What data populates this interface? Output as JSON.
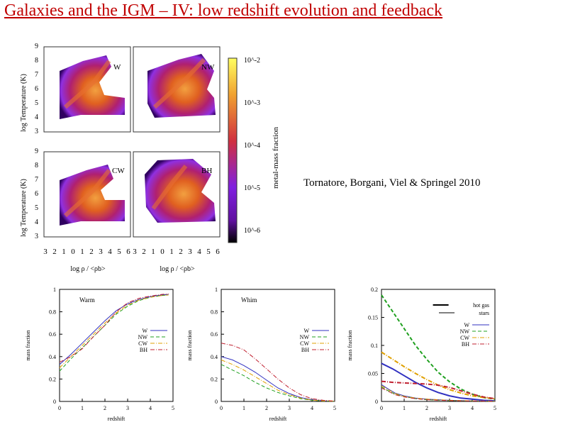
{
  "slide": {
    "title": "Galaxies and the IGM – IV: low redshift evolution and feedback",
    "credit": "Tornatore, Borgani, Viel & Springel 2010"
  },
  "phase_diagram": {
    "ylabel": "log Temperature (K)",
    "xlabel": "log ρ / <ρb>",
    "yticks": [
      "3",
      "4",
      "5",
      "6",
      "7",
      "8",
      "9"
    ],
    "xticks": [
      "3",
      "2",
      "1",
      "0",
      "1",
      "2",
      "3",
      "4",
      "5",
      "6"
    ],
    "panels": [
      "W",
      "NW",
      "CW",
      "BH"
    ],
    "colorbar_label": "metal-mass fraction",
    "colorbar_ticks": [
      "10^-2",
      "10^-3",
      "10^-4",
      "10^-5",
      "10^-6"
    ],
    "colors": {
      "hot": "#ffff40",
      "warm": "#e06020",
      "mid": "#b02060",
      "cool": "#a040ff",
      "dark": "#200040"
    }
  },
  "chart_data": [
    {
      "type": "line",
      "title": "Warm",
      "xlabel": "redshift",
      "ylabel": "mass fraction",
      "xlim": [
        0,
        5
      ],
      "ylim": [
        0,
        1
      ],
      "xticks": [
        0,
        1,
        2,
        3,
        4,
        5
      ],
      "yticks": [
        0,
        0.2,
        0.4,
        0.6,
        0.8,
        1
      ],
      "ytick_labels": [
        "0",
        "0.2",
        "0.4",
        "0.6",
        "0.8",
        "1"
      ],
      "series": [
        {
          "name": "W",
          "color": "#3030c0",
          "dash": "",
          "x": [
            0,
            0.5,
            1,
            1.5,
            2,
            2.5,
            3,
            3.5,
            4,
            4.5,
            4.8
          ],
          "y": [
            0.33,
            0.42,
            0.52,
            0.62,
            0.72,
            0.81,
            0.87,
            0.91,
            0.935,
            0.95,
            0.955
          ]
        },
        {
          "name": "NW",
          "color": "#20a020",
          "dash": "5,3",
          "x": [
            0,
            0.5,
            1,
            1.5,
            2,
            2.5,
            3,
            3.5,
            4,
            4.5,
            4.8
          ],
          "y": [
            0.27,
            0.38,
            0.48,
            0.58,
            0.68,
            0.78,
            0.85,
            0.9,
            0.93,
            0.945,
            0.95
          ]
        },
        {
          "name": "CW",
          "color": "#e0a000",
          "dash": "6,2,1,2",
          "x": [
            0,
            0.5,
            1,
            1.5,
            2,
            2.5,
            3,
            3.5,
            4,
            4.5,
            4.8
          ],
          "y": [
            0.3,
            0.4,
            0.5,
            0.6,
            0.7,
            0.79,
            0.86,
            0.905,
            0.93,
            0.945,
            0.95
          ]
        },
        {
          "name": "BH",
          "color": "#c02030",
          "dash": "6,2,1,2",
          "x": [
            0,
            0.5,
            1,
            1.5,
            2,
            2.5,
            3,
            3.5,
            4,
            4.5,
            4.8
          ],
          "y": [
            0.35,
            0.4,
            0.47,
            0.58,
            0.68,
            0.8,
            0.88,
            0.92,
            0.94,
            0.955,
            0.96
          ]
        }
      ]
    },
    {
      "type": "line",
      "title": "Whim",
      "xlabel": "redshift",
      "ylabel": "mass fraction",
      "xlim": [
        0,
        5
      ],
      "ylim": [
        0,
        1
      ],
      "xticks": [
        0,
        1,
        2,
        3,
        4,
        5
      ],
      "yticks": [
        0,
        0.2,
        0.4,
        0.6,
        0.8,
        1
      ],
      "ytick_labels": [
        "0",
        "0.2",
        "0.4",
        "0.6",
        "0.8",
        "1"
      ],
      "series": [
        {
          "name": "W",
          "color": "#3030c0",
          "dash": "",
          "x": [
            0,
            0.5,
            1,
            1.5,
            2,
            2.5,
            3,
            3.5,
            4,
            4.5,
            5
          ],
          "y": [
            0.4,
            0.37,
            0.32,
            0.26,
            0.19,
            0.12,
            0.07,
            0.035,
            0.015,
            0.006,
            0.002
          ]
        },
        {
          "name": "NW",
          "color": "#20a020",
          "dash": "5,3",
          "x": [
            0,
            0.5,
            1,
            1.5,
            2,
            2.5,
            3,
            3.5,
            4,
            4.5,
            5
          ],
          "y": [
            0.33,
            0.28,
            0.23,
            0.17,
            0.12,
            0.08,
            0.05,
            0.025,
            0.01,
            0.004,
            0.001
          ]
        },
        {
          "name": "CW",
          "color": "#e0a000",
          "dash": "6,2,1,2",
          "x": [
            0,
            0.5,
            1,
            1.5,
            2,
            2.5,
            3,
            3.5,
            4,
            4.5,
            5
          ],
          "y": [
            0.37,
            0.33,
            0.28,
            0.22,
            0.16,
            0.1,
            0.06,
            0.03,
            0.012,
            0.005,
            0.002
          ]
        },
        {
          "name": "BH",
          "color": "#c02030",
          "dash": "6,2,1,2",
          "x": [
            0,
            0.5,
            1,
            1.5,
            2,
            2.5,
            3,
            3.5,
            4,
            4.5,
            5
          ],
          "y": [
            0.52,
            0.5,
            0.46,
            0.38,
            0.29,
            0.2,
            0.12,
            0.06,
            0.025,
            0.01,
            0.003
          ]
        }
      ]
    },
    {
      "type": "line",
      "title": "",
      "xlabel": "redshift",
      "ylabel": "mass fraction",
      "xlim": [
        0,
        5
      ],
      "ylim": [
        0,
        0.2
      ],
      "xticks": [
        0,
        1,
        2,
        3,
        4,
        5
      ],
      "yticks": [
        0,
        0.05,
        0.1,
        0.15,
        0.2
      ],
      "ytick_labels": [
        "0",
        "0.05",
        "0.1",
        "0.15",
        "0.2"
      ],
      "style_legend": [
        {
          "name": "hot gas",
          "width": 2
        },
        {
          "name": "stars",
          "width": 1
        }
      ],
      "series": [
        {
          "name": "W",
          "color": "#3030c0",
          "dash": "",
          "width": 2,
          "x": [
            0,
            0.5,
            1,
            1.5,
            2,
            2.5,
            3,
            3.5,
            4,
            4.5,
            5
          ],
          "y": [
            0.068,
            0.058,
            0.046,
            0.034,
            0.024,
            0.016,
            0.01,
            0.006,
            0.004,
            0.002,
            0.001
          ]
        },
        {
          "name": "NW",
          "color": "#20a020",
          "dash": "5,3",
          "width": 2,
          "x": [
            0,
            0.5,
            1,
            1.5,
            2,
            2.5,
            3,
            3.5,
            4,
            4.5,
            5
          ],
          "y": [
            0.19,
            0.16,
            0.13,
            0.1,
            0.075,
            0.052,
            0.035,
            0.022,
            0.013,
            0.007,
            0.004
          ]
        },
        {
          "name": "CW",
          "color": "#e0a000",
          "dash": "6,2,1,2",
          "width": 2,
          "x": [
            0,
            0.5,
            1,
            1.5,
            2,
            2.5,
            3,
            3.5,
            4,
            4.5,
            5
          ],
          "y": [
            0.088,
            0.075,
            0.062,
            0.05,
            0.039,
            0.029,
            0.021,
            0.015,
            0.01,
            0.007,
            0.005
          ]
        },
        {
          "name": "BH",
          "color": "#c02030",
          "dash": "6,2,1,2",
          "width": 2,
          "x": [
            0,
            0.5,
            1,
            1.5,
            2,
            2.5,
            3,
            3.5,
            4,
            4.5,
            5
          ],
          "y": [
            0.036,
            0.034,
            0.033,
            0.032,
            0.031,
            0.029,
            0.025,
            0.019,
            0.013,
            0.008,
            0.005
          ]
        },
        {
          "name": "W stars",
          "color": "#3030c0",
          "dash": "",
          "width": 1,
          "x": [
            0,
            0.3,
            0.6,
            1,
            1.5,
            2,
            2.5,
            3,
            3.5,
            4,
            5
          ],
          "y": [
            0.03,
            0.022,
            0.015,
            0.01,
            0.006,
            0.004,
            0.003,
            0.002,
            0.0015,
            0.001,
            0.0005
          ]
        },
        {
          "name": "NW stars",
          "color": "#20a020",
          "dash": "5,3",
          "width": 1,
          "x": [
            0,
            0.3,
            0.6,
            1,
            1.5,
            2,
            2.5,
            3,
            3.5,
            4,
            5
          ],
          "y": [
            0.026,
            0.019,
            0.013,
            0.009,
            0.005,
            0.003,
            0.002,
            0.0015,
            0.001,
            0.0008,
            0.0004
          ]
        },
        {
          "name": "CW stars",
          "color": "#e0a000",
          "dash": "6,2,1,2",
          "width": 1,
          "x": [
            0,
            0.3,
            0.6,
            1,
            1.5,
            2,
            2.5,
            3,
            3.5,
            4,
            5
          ],
          "y": [
            0.028,
            0.021,
            0.014,
            0.009,
            0.006,
            0.004,
            0.003,
            0.002,
            0.0015,
            0.001,
            0.0005
          ]
        },
        {
          "name": "BH stars",
          "color": "#c02030",
          "dash": "6,2,1,2",
          "width": 1,
          "x": [
            0,
            0.3,
            0.6,
            1,
            1.5,
            2,
            2.5,
            3,
            3.5,
            4,
            5
          ],
          "y": [
            0.024,
            0.018,
            0.012,
            0.008,
            0.005,
            0.003,
            0.002,
            0.0015,
            0.001,
            0.0007,
            0.0003
          ]
        }
      ],
      "legend_series": [
        "W",
        "NW",
        "CW",
        "BH"
      ]
    }
  ]
}
